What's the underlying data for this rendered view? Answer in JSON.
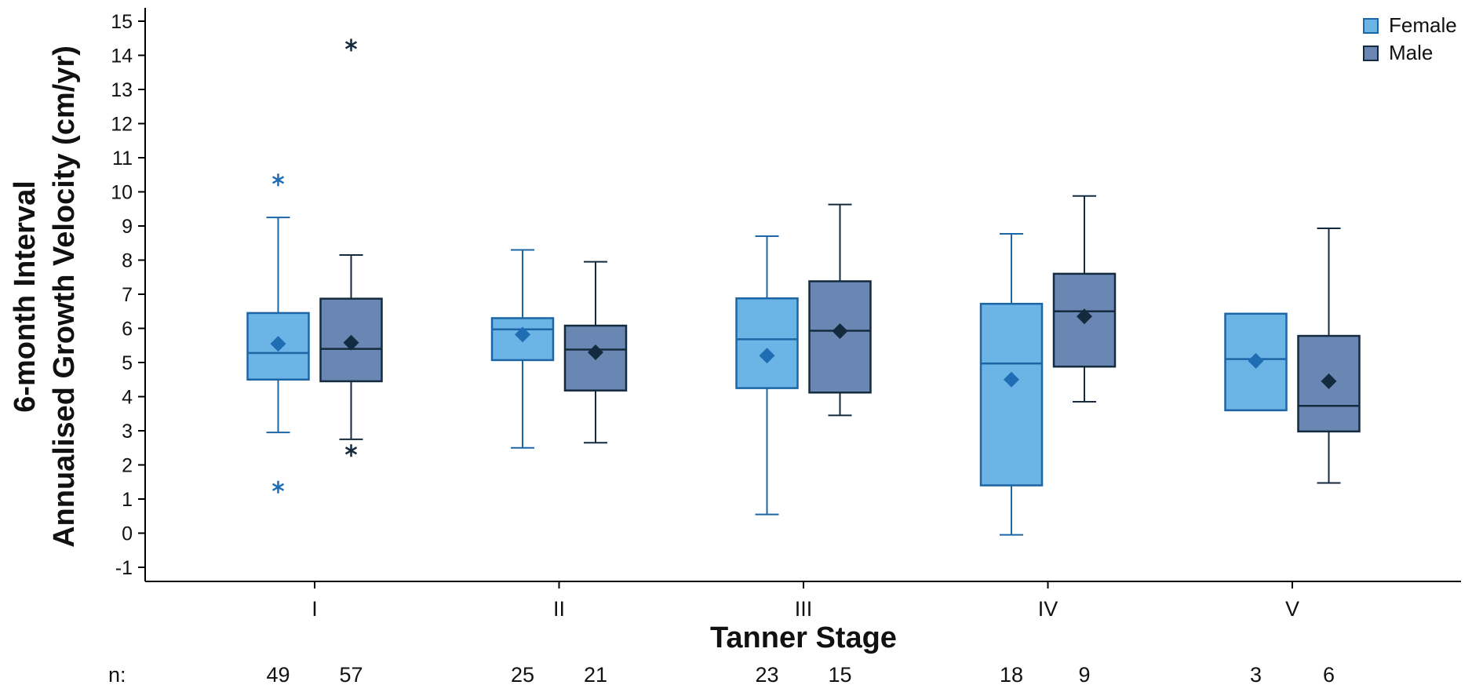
{
  "chart_data": {
    "type": "boxplot",
    "title": "",
    "xlabel": "Tanner Stage",
    "ylabel_lines": [
      "6-month Interval",
      "Annualised Growth Velocity (cm/yr)"
    ],
    "ylim": [
      -1,
      15
    ],
    "yticks": [
      -1,
      0,
      1,
      2,
      3,
      4,
      5,
      6,
      7,
      8,
      9,
      10,
      11,
      12,
      13,
      14,
      15
    ],
    "categories": [
      "I",
      "II",
      "III",
      "IV",
      "V"
    ],
    "legend_position": "top-right",
    "n_prefix": "n:",
    "series": [
      {
        "name": "Female",
        "color": "#6cb4e6",
        "edge_color": "#1d66a6",
        "boxes": [
          {
            "whisker_low": 2.95,
            "q1": 4.5,
            "median": 5.28,
            "q3": 6.45,
            "whisker_high": 9.25,
            "mean": 5.55,
            "outliers": [
              10.35,
              1.35
            ],
            "n": "49"
          },
          {
            "whisker_low": 2.5,
            "q1": 5.07,
            "median": 5.97,
            "q3": 6.3,
            "whisker_high": 8.3,
            "mean": 5.82,
            "outliers": [],
            "n": "25"
          },
          {
            "whisker_low": 0.55,
            "q1": 4.25,
            "median": 5.68,
            "q3": 6.88,
            "whisker_high": 8.7,
            "mean": 5.2,
            "outliers": [],
            "n": "23"
          },
          {
            "whisker_low": -0.05,
            "q1": 1.4,
            "median": 4.97,
            "q3": 6.72,
            "whisker_high": 8.77,
            "mean": 4.5,
            "outliers": [],
            "n": "18"
          },
          {
            "whisker_low": 3.6,
            "q1": 3.6,
            "median": 5.1,
            "q3": 6.43,
            "whisker_high": 6.43,
            "mean": 5.05,
            "outliers": [],
            "n": "3"
          }
        ]
      },
      {
        "name": "Male",
        "color": "#6a86b2",
        "edge_color": "#142a3f",
        "boxes": [
          {
            "whisker_low": 2.75,
            "q1": 4.45,
            "median": 5.4,
            "q3": 6.87,
            "whisker_high": 8.15,
            "mean": 5.58,
            "outliers": [
              14.3,
              2.42
            ],
            "n": "57"
          },
          {
            "whisker_low": 2.65,
            "q1": 4.18,
            "median": 5.38,
            "q3": 6.08,
            "whisker_high": 7.95,
            "mean": 5.3,
            "outliers": [],
            "n": "21"
          },
          {
            "whisker_low": 3.45,
            "q1": 4.12,
            "median": 5.93,
            "q3": 7.38,
            "whisker_high": 9.63,
            "mean": 5.92,
            "outliers": [],
            "n": "15"
          },
          {
            "whisker_low": 3.85,
            "q1": 4.88,
            "median": 6.5,
            "q3": 7.6,
            "whisker_high": 9.88,
            "mean": 6.35,
            "outliers": [],
            "n": "9"
          },
          {
            "whisker_low": 1.47,
            "q1": 2.98,
            "median": 3.73,
            "q3": 5.78,
            "whisker_high": 8.93,
            "mean": 4.45,
            "outliers": [],
            "n": "6"
          }
        ]
      }
    ]
  }
}
